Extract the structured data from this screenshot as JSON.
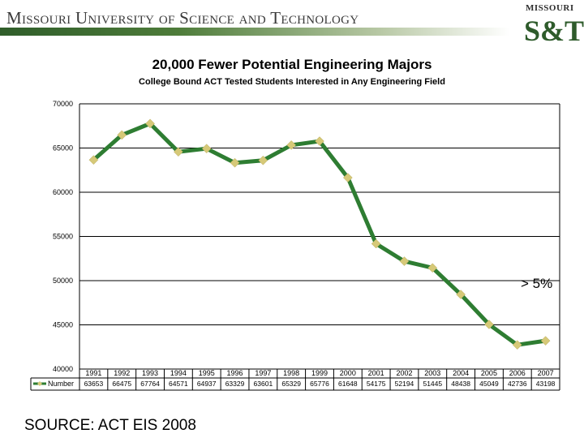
{
  "header": {
    "university_name": "Missouri University of Science and Technology",
    "logo_top": "MISSOURI",
    "logo_main": "S&T"
  },
  "annotation": "> 5%",
  "source": "SOURCE: ACT EIS 2008",
  "colors": {
    "line": "#2e7d32",
    "marker": "#d6c978",
    "grid": "#000000",
    "brand_green": "#2e5b2b"
  },
  "chart_data": {
    "type": "line",
    "title": "20,000 Fewer Potential Engineering Majors",
    "subtitle": "College Bound ACT Tested Students Interested in Any Engineering Field",
    "xlabel": "",
    "ylabel": "",
    "x": [
      "1991",
      "1992",
      "1993",
      "1994",
      "1995",
      "1996",
      "1997",
      "1998",
      "1999",
      "2000",
      "2001",
      "2002",
      "2003",
      "2004",
      "2005",
      "2006",
      "2007"
    ],
    "series": [
      {
        "name": "Number",
        "values": [
          63653,
          66475,
          67764,
          64571,
          64937,
          63329,
          63601,
          65329,
          65776,
          61648,
          54175,
          52194,
          51445,
          48438,
          45049,
          42736,
          43198
        ]
      }
    ],
    "ylim": [
      40000,
      70000
    ],
    "yticks": [
      40000,
      45000,
      50000,
      55000,
      60000,
      65000,
      70000
    ],
    "grid": true,
    "legend": "data-table-left",
    "data_table": true
  }
}
